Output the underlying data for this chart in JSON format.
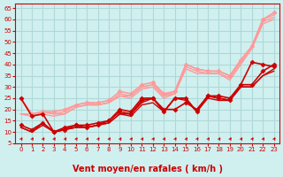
{
  "title": "Vent moyen/en rafales ( km/h )",
  "bg_color": "#d0f0f0",
  "grid_color": "#b0d8d8",
  "x_values": [
    0,
    1,
    2,
    3,
    4,
    5,
    6,
    7,
    8,
    9,
    10,
    11,
    12,
    13,
    14,
    15,
    16,
    17,
    18,
    19,
    20,
    21,
    22,
    23
  ],
  "ylim": [
    5,
    67
  ],
  "yticks": [
    5,
    10,
    15,
    20,
    25,
    30,
    35,
    40,
    45,
    50,
    55,
    60,
    65
  ],
  "line1": {
    "y": [
      25,
      17,
      18,
      10,
      11,
      13,
      13,
      14,
      15,
      20,
      19,
      25,
      25,
      20,
      20,
      23,
      20,
      26,
      25,
      24,
      31,
      41,
      40,
      39
    ],
    "color": "#cc0000",
    "lw": 1.2,
    "marker": "D",
    "ms": 2.5
  },
  "line2": {
    "y": [
      13,
      11,
      14,
      10,
      12,
      13,
      12,
      13,
      15,
      19,
      18,
      24,
      25,
      19,
      25,
      25,
      19,
      26,
      26,
      25,
      31,
      31,
      37,
      40
    ],
    "color": "#cc0000",
    "lw": 1.2,
    "marker": "D",
    "ms": 2.5
  },
  "line3": {
    "y": [
      12,
      10,
      14,
      10,
      11,
      12,
      12,
      13,
      14,
      18,
      18,
      23,
      25,
      19,
      25,
      25,
      19,
      26,
      25,
      24,
      30,
      30,
      35,
      38
    ],
    "color": "#cc0000",
    "lw": 1.0,
    "marker": null,
    "ms": 0
  },
  "line4": {
    "y": [
      12,
      10,
      13,
      10,
      11,
      12,
      12,
      13,
      14,
      18,
      17,
      22,
      23,
      19,
      25,
      24,
      19,
      25,
      24,
      24,
      30,
      30,
      35,
      37
    ],
    "color": "#cc0000",
    "lw": 1.0,
    "marker": null,
    "ms": 0
  },
  "line5": {
    "y": [
      25,
      18,
      19,
      19,
      20,
      22,
      23,
      23,
      24,
      28,
      27,
      31,
      32,
      27,
      28,
      40,
      38,
      37,
      37,
      35,
      42,
      48,
      60,
      63
    ],
    "color": "#ff9999",
    "lw": 1.2,
    "marker": "D",
    "ms": 2.5
  },
  "line6": {
    "y": [
      18,
      18,
      19,
      18,
      19,
      22,
      23,
      22,
      23,
      27,
      26,
      30,
      31,
      26,
      28,
      40,
      38,
      37,
      37,
      35,
      42,
      48,
      60,
      62
    ],
    "color": "#ff9999",
    "lw": 1.0,
    "marker": null,
    "ms": 0
  },
  "line7": {
    "y": [
      18,
      17,
      19,
      18,
      18,
      21,
      22,
      22,
      23,
      26,
      26,
      30,
      31,
      26,
      27,
      39,
      37,
      36,
      36,
      34,
      41,
      48,
      59,
      61
    ],
    "color": "#ff9999",
    "lw": 1.0,
    "marker": null,
    "ms": 0
  },
  "line8": {
    "y": [
      18,
      17,
      18,
      17,
      18,
      21,
      22,
      22,
      23,
      26,
      25,
      29,
      30,
      25,
      27,
      38,
      36,
      36,
      36,
      33,
      40,
      47,
      58,
      60
    ],
    "color": "#ff9999",
    "lw": 1.0,
    "marker": null,
    "ms": 0
  },
  "arrows": {
    "x": [
      0,
      1,
      2,
      3,
      4,
      5,
      6,
      7,
      8,
      9,
      10,
      11,
      12,
      13,
      14,
      15,
      16,
      17,
      18,
      19,
      20,
      21,
      22,
      23
    ],
    "y": 6.5,
    "color": "#cc0000",
    "size": 6
  },
  "text_color": "#cc0000",
  "xlabel_fontsize": 7,
  "ylabel_fontsize": 7,
  "tick_fontsize": 6
}
